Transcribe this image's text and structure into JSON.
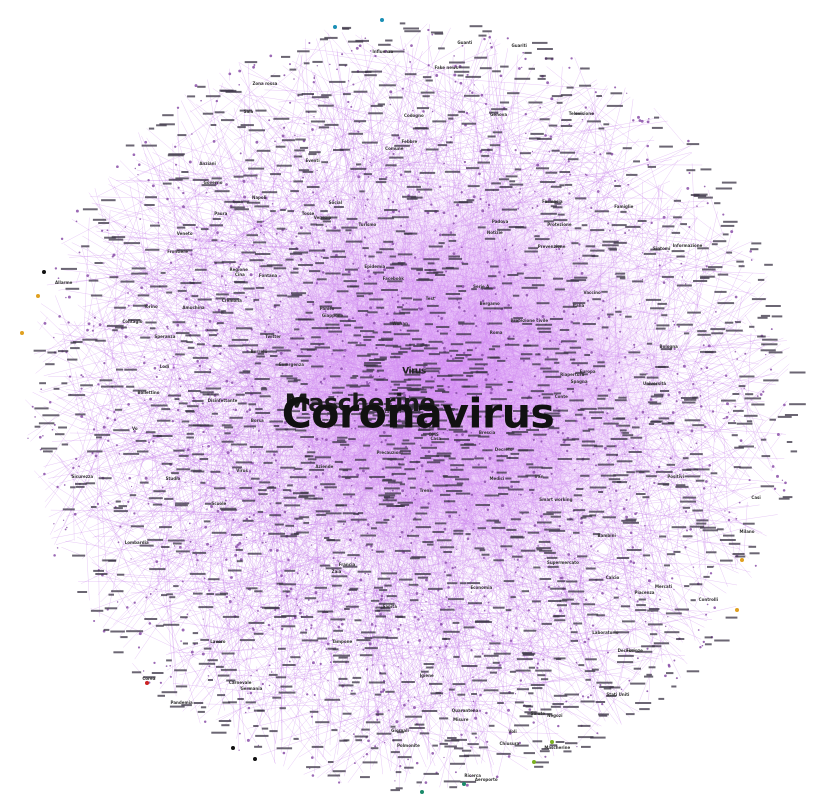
{
  "graph": {
    "edge_color": "#c070e8",
    "node_color": "#8a4fa8",
    "hubs": {
      "main": "Coronavirus",
      "second": "Mascherine",
      "third": "Virus"
    },
    "peripheral_labels": [
      "Mascherine",
      "Virus",
      "Cina",
      "Italia",
      "Milano",
      "Roma",
      "Lombardia",
      "Veneto",
      "Ospedale",
      "Governo",
      "Salute",
      "Farmacia",
      "Contagio",
      "Emergenza",
      "Quarantena",
      "Epidemia",
      "Pandemia",
      "Sanità",
      "Medici",
      "Sintomi",
      "Tampone",
      "Vaccino",
      "Wuhan",
      "Codogno",
      "Scuole",
      "Comune",
      "Regione",
      "Prevenzione",
      "Igiene",
      "Disinfettante",
      "Amuchina",
      "Guanti",
      "Febbre",
      "Tosse",
      "Influenza",
      "Polmonite",
      "Protezione",
      "Sicurezza",
      "Notizie",
      "Bollettino",
      "Decreto",
      "Zona rossa",
      "Turismo",
      "Economia",
      "Borsa",
      "Lavoro",
      "Aziende",
      "Negozi",
      "Supermercato",
      "Treni",
      "Voli",
      "Aeroporto",
      "Frontiere",
      "Europa",
      "Francia",
      "Germania",
      "Spagna",
      "Corea",
      "Giappone",
      "Iran",
      "Stati Uniti",
      "OMS",
      "Conte",
      "Fontana",
      "Zaia",
      "Sala",
      "Speranza",
      "Borrelli",
      "Protezione civile",
      "Allarme",
      "Paura",
      "Panico",
      "Fake news",
      "Informazione",
      "Televisione",
      "Giornali",
      "Social",
      "Twitter",
      "Instagram",
      "Facebook",
      "Ricerca",
      "Università",
      "Laboratorio",
      "Studio",
      "Test",
      "Casi",
      "Positivi",
      "Guariti",
      "Decessi",
      "Anziani",
      "Bambini",
      "Famiglie",
      "Casa",
      "Smart working",
      "Eventi",
      "Calcio",
      "Serie A",
      "Carnevale",
      "Venezia",
      "Torino",
      "Genova",
      "Bologna",
      "Napoli",
      "Firenze",
      "Bergamo",
      "Brescia",
      "Lodi",
      "Cremona",
      "Piacenza",
      "Padova",
      "Vo",
      "Precauzioni",
      "Misure",
      "Controlli",
      "Chiusura",
      "Riapertura",
      "Mercati"
    ]
  }
}
